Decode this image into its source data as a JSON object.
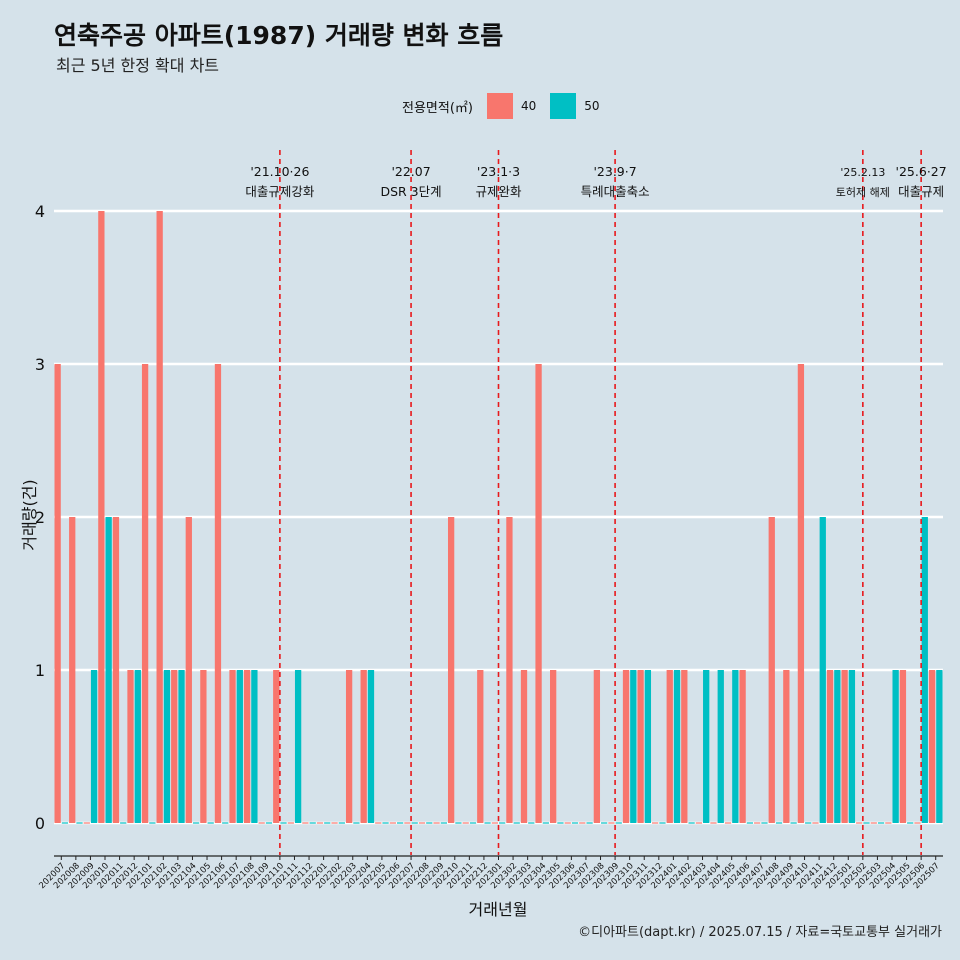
{
  "header": {
    "title": "연축주공 아파트(1987) 거래량 변화 흐름",
    "subtitle": "최근 5년 한정 확대 차트"
  },
  "legend": {
    "title": "전용면적(㎡)",
    "items": [
      {
        "label": "40",
        "color": "#F8766D"
      },
      {
        "label": "50",
        "color": "#00BFC4"
      }
    ]
  },
  "caption": "©디아파트(dapt.kr) / 2025.07.15 / 자료=국토교통부 실거래가",
  "chart_data": {
    "type": "bar",
    "xlabel": "거래년월",
    "ylabel": "거래량(건)",
    "ylim": [
      0,
      4
    ],
    "yticks": [
      "0",
      "1",
      "2",
      "3",
      "4"
    ],
    "categories": [
      "202007",
      "202008",
      "202009",
      "202010",
      "202011",
      "202012",
      "202101",
      "202102",
      "202103",
      "202104",
      "202105",
      "202106",
      "202107",
      "202108",
      "202109",
      "202110",
      "202111",
      "202112",
      "202201",
      "202202",
      "202203",
      "202204",
      "202205",
      "202206",
      "202207",
      "202208",
      "202209",
      "202210",
      "202211",
      "202212",
      "202301",
      "202302",
      "202303",
      "202304",
      "202305",
      "202306",
      "202307",
      "202308",
      "202309",
      "202310",
      "202311",
      "202312",
      "202401",
      "202402",
      "202403",
      "202404",
      "202405",
      "202406",
      "202407",
      "202408",
      "202409",
      "202410",
      "202411",
      "202412",
      "202501",
      "202502",
      "202503",
      "202504",
      "202505",
      "202506",
      "202507"
    ],
    "series": [
      {
        "name": "40",
        "color": "#F8766D",
        "values": [
          3,
          2,
          0,
          4,
          2,
          1,
          3,
          4,
          1,
          2,
          1,
          3,
          1,
          1,
          0,
          1,
          0,
          0,
          0,
          0,
          1,
          1,
          0,
          0,
          0,
          0,
          0,
          2,
          0,
          1,
          0,
          2,
          1,
          3,
          1,
          0,
          0,
          1,
          0,
          1,
          1,
          0,
          1,
          1,
          0,
          0,
          0,
          1,
          0,
          2,
          1,
          3,
          0,
          1,
          1,
          0,
          0,
          0,
          1,
          0,
          1
        ]
      },
      {
        "name": "50",
        "color": "#00BFC4",
        "values": [
          0,
          0,
          1,
          2,
          0,
          1,
          0,
          1,
          1,
          0,
          0,
          0,
          1,
          1,
          0,
          0,
          1,
          0,
          0,
          0,
          0,
          1,
          0,
          0,
          0,
          0,
          0,
          0,
          0,
          0,
          0,
          0,
          0,
          0,
          0,
          0,
          0,
          0,
          0,
          1,
          1,
          0,
          1,
          0,
          1,
          1,
          1,
          0,
          0,
          0,
          0,
          0,
          2,
          1,
          1,
          0,
          0,
          1,
          0,
          2,
          1
        ]
      }
    ],
    "annotations": [
      {
        "category": "202110",
        "date": "'21.10·26",
        "label": "대출규제강화"
      },
      {
        "category": "202207",
        "date": "'22.07",
        "label": "DSR 3단계"
      },
      {
        "category": "202301",
        "date": "'23.1·3",
        "label": "규제완화"
      },
      {
        "category": "202309",
        "date": "'23.9·7",
        "label": "특례대출축소"
      },
      {
        "category": "202502",
        "date": "'25.2.13",
        "label": "토허제 해제"
      },
      {
        "category": "202506",
        "date": "'25.6·27",
        "label": "대출규제"
      }
    ],
    "grid": true,
    "legend_position": "top"
  }
}
